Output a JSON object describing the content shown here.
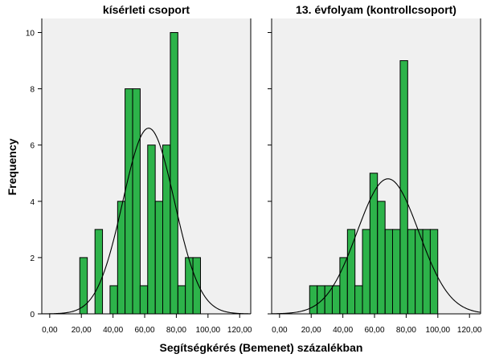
{
  "chart_data": {
    "type": "histogram",
    "xlabel": "Segítségkérés (Bemenet) százalékban",
    "ylabel": "Frequency",
    "xlim": [
      -5,
      127
    ],
    "ylim": [
      0,
      10.5
    ],
    "xticks": [
      0,
      20,
      40,
      60,
      80,
      100,
      120
    ],
    "xtick_labels": [
      "0,00",
      "20,00",
      "40,00",
      "60,00",
      "80,00",
      "100,00",
      "120,00"
    ],
    "yticks": [
      0,
      2,
      4,
      6,
      8,
      10
    ],
    "ytick_labels": [
      "0",
      "2",
      "4",
      "6",
      "8",
      "10"
    ],
    "bin_width": 4.76,
    "grid": false,
    "colors": {
      "bar_fill": "#2db34a",
      "bar_stroke": "#000000",
      "plot_background": "#f0f0f0",
      "curve": "#000000"
    },
    "panels": [
      {
        "title": "kísérleti csoport",
        "bins": [
          {
            "x": 19.0,
            "count": 2
          },
          {
            "x": 23.8,
            "count": 0
          },
          {
            "x": 28.6,
            "count": 3
          },
          {
            "x": 33.3,
            "count": 0
          },
          {
            "x": 38.1,
            "count": 1
          },
          {
            "x": 42.9,
            "count": 4
          },
          {
            "x": 47.6,
            "count": 8
          },
          {
            "x": 52.4,
            "count": 8
          },
          {
            "x": 57.1,
            "count": 1
          },
          {
            "x": 61.9,
            "count": 6
          },
          {
            "x": 66.7,
            "count": 4
          },
          {
            "x": 71.4,
            "count": 6
          },
          {
            "x": 76.2,
            "count": 10
          },
          {
            "x": 81.0,
            "count": 1
          },
          {
            "x": 85.7,
            "count": 2
          },
          {
            "x": 90.5,
            "count": 2
          }
        ],
        "normal_curve": {
          "mean": 62.5,
          "peak": 6.6,
          "sd": 16.3
        }
      },
      {
        "title": "13. évfolyam (kontrollcsoport)",
        "bins": [
          {
            "x": 19.0,
            "count": 1
          },
          {
            "x": 23.8,
            "count": 1
          },
          {
            "x": 28.6,
            "count": 1
          },
          {
            "x": 33.3,
            "count": 1
          },
          {
            "x": 38.1,
            "count": 2
          },
          {
            "x": 42.9,
            "count": 3
          },
          {
            "x": 47.6,
            "count": 1
          },
          {
            "x": 52.4,
            "count": 3
          },
          {
            "x": 57.1,
            "count": 5
          },
          {
            "x": 61.9,
            "count": 4
          },
          {
            "x": 66.7,
            "count": 3
          },
          {
            "x": 71.4,
            "count": 3
          },
          {
            "x": 76.2,
            "count": 9
          },
          {
            "x": 81.0,
            "count": 3
          },
          {
            "x": 85.7,
            "count": 3
          },
          {
            "x": 90.5,
            "count": 3
          },
          {
            "x": 95.2,
            "count": 3
          }
        ],
        "normal_curve": {
          "mean": 68.5,
          "peak": 4.8,
          "sd": 19.5
        }
      }
    ]
  }
}
